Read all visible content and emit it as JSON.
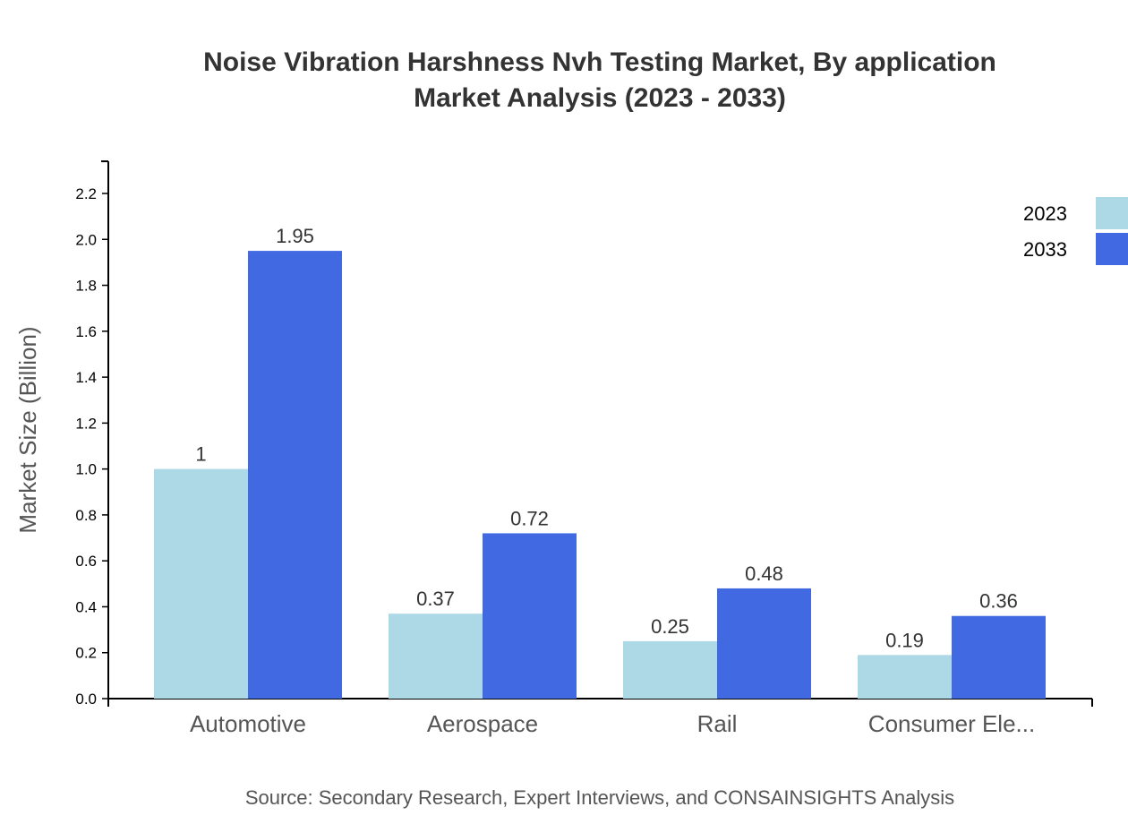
{
  "chart_data": {
    "type": "bar",
    "title_line1": "Noise Vibration Harshness Nvh Testing Market, By application",
    "title_line2": "Market Analysis (2023 - 2033)",
    "xlabel": "",
    "ylabel": "Market Size (Billion)",
    "ylim": [
      0,
      2.34
    ],
    "yticks": [
      "0.0",
      "0.2",
      "0.4",
      "0.6",
      "0.8",
      "1.0",
      "1.2",
      "1.4",
      "1.6",
      "1.8",
      "2.0",
      "2.2"
    ],
    "categories": [
      "Automotive",
      "Aerospace",
      "Rail",
      "Consumer Ele..."
    ],
    "series": [
      {
        "name": "2023",
        "color": "#add8e6",
        "values": [
          1,
          0.37,
          0.25,
          0.19
        ],
        "labels": [
          "1",
          "0.37",
          "0.25",
          "0.19"
        ]
      },
      {
        "name": "2033",
        "color": "#4169e1",
        "values": [
          1.95,
          0.72,
          0.48,
          0.36
        ],
        "labels": [
          "1.95",
          "0.72",
          "0.48",
          "0.36"
        ]
      }
    ],
    "grid": false,
    "legend": "top-right",
    "source": "Source: Secondary Research, Expert Interviews, and CONSAINSIGHTS Analysis"
  }
}
